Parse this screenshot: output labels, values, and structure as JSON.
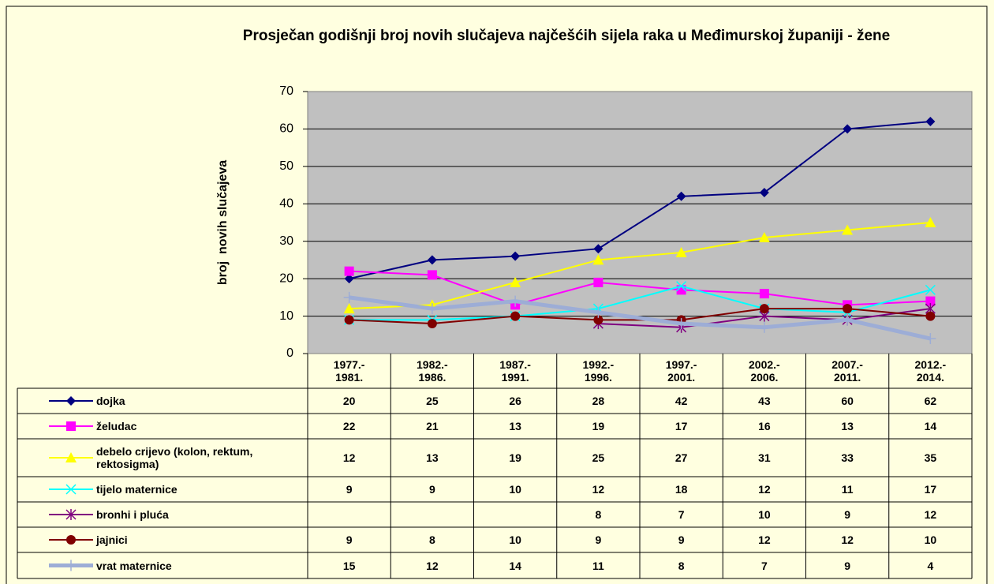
{
  "chart_data": {
    "type": "line",
    "title": "Prosječan godišnji broj novih slučajeva najčešćih sijela raka u Međimurskoj županiji - žene",
    "y_label": "broj  novih slučajeva",
    "categories": [
      "1977.- 1981.",
      "1982.- 1986.",
      "1987.- 1991.",
      "1992.- 1996.",
      "1997.- 2001.",
      "2002.- 2006.",
      "2007.- 2011.",
      "2012.- 2014."
    ],
    "ylim": [
      0,
      70
    ],
    "yticks": [
      0,
      10,
      20,
      30,
      40,
      50,
      60,
      70
    ],
    "grid": true,
    "series": [
      {
        "name": "dojka",
        "color": "#000080",
        "marker": "diamond",
        "values": [
          20,
          25,
          26,
          28,
          42,
          43,
          60,
          62
        ]
      },
      {
        "name": "želudac",
        "color": "#FF00FF",
        "marker": "square",
        "values": [
          22,
          21,
          13,
          19,
          17,
          16,
          13,
          14
        ]
      },
      {
        "name": "debelo crijevo (kolon, rektum, rektosigma)",
        "color": "#FFFF00",
        "marker": "triangle",
        "values": [
          12,
          13,
          19,
          25,
          27,
          31,
          33,
          35
        ]
      },
      {
        "name": "tijelo maternice",
        "color": "#00FFFF",
        "marker": "x",
        "values": [
          9,
          9,
          10,
          12,
          18,
          12,
          11,
          17
        ]
      },
      {
        "name": "bronhi i pluća",
        "color": "#800080",
        "marker": "star",
        "values": [
          null,
          null,
          null,
          8,
          7,
          10,
          9,
          12
        ]
      },
      {
        "name": "jajnici",
        "color": "#800000",
        "marker": "circle",
        "values": [
          9,
          8,
          10,
          9,
          9,
          12,
          12,
          10
        ]
      },
      {
        "name": "vrat maternice",
        "color": "#9DADD6",
        "marker": "plus",
        "width": 5,
        "values": [
          15,
          12,
          14,
          11,
          8,
          7,
          9,
          4
        ]
      }
    ]
  }
}
